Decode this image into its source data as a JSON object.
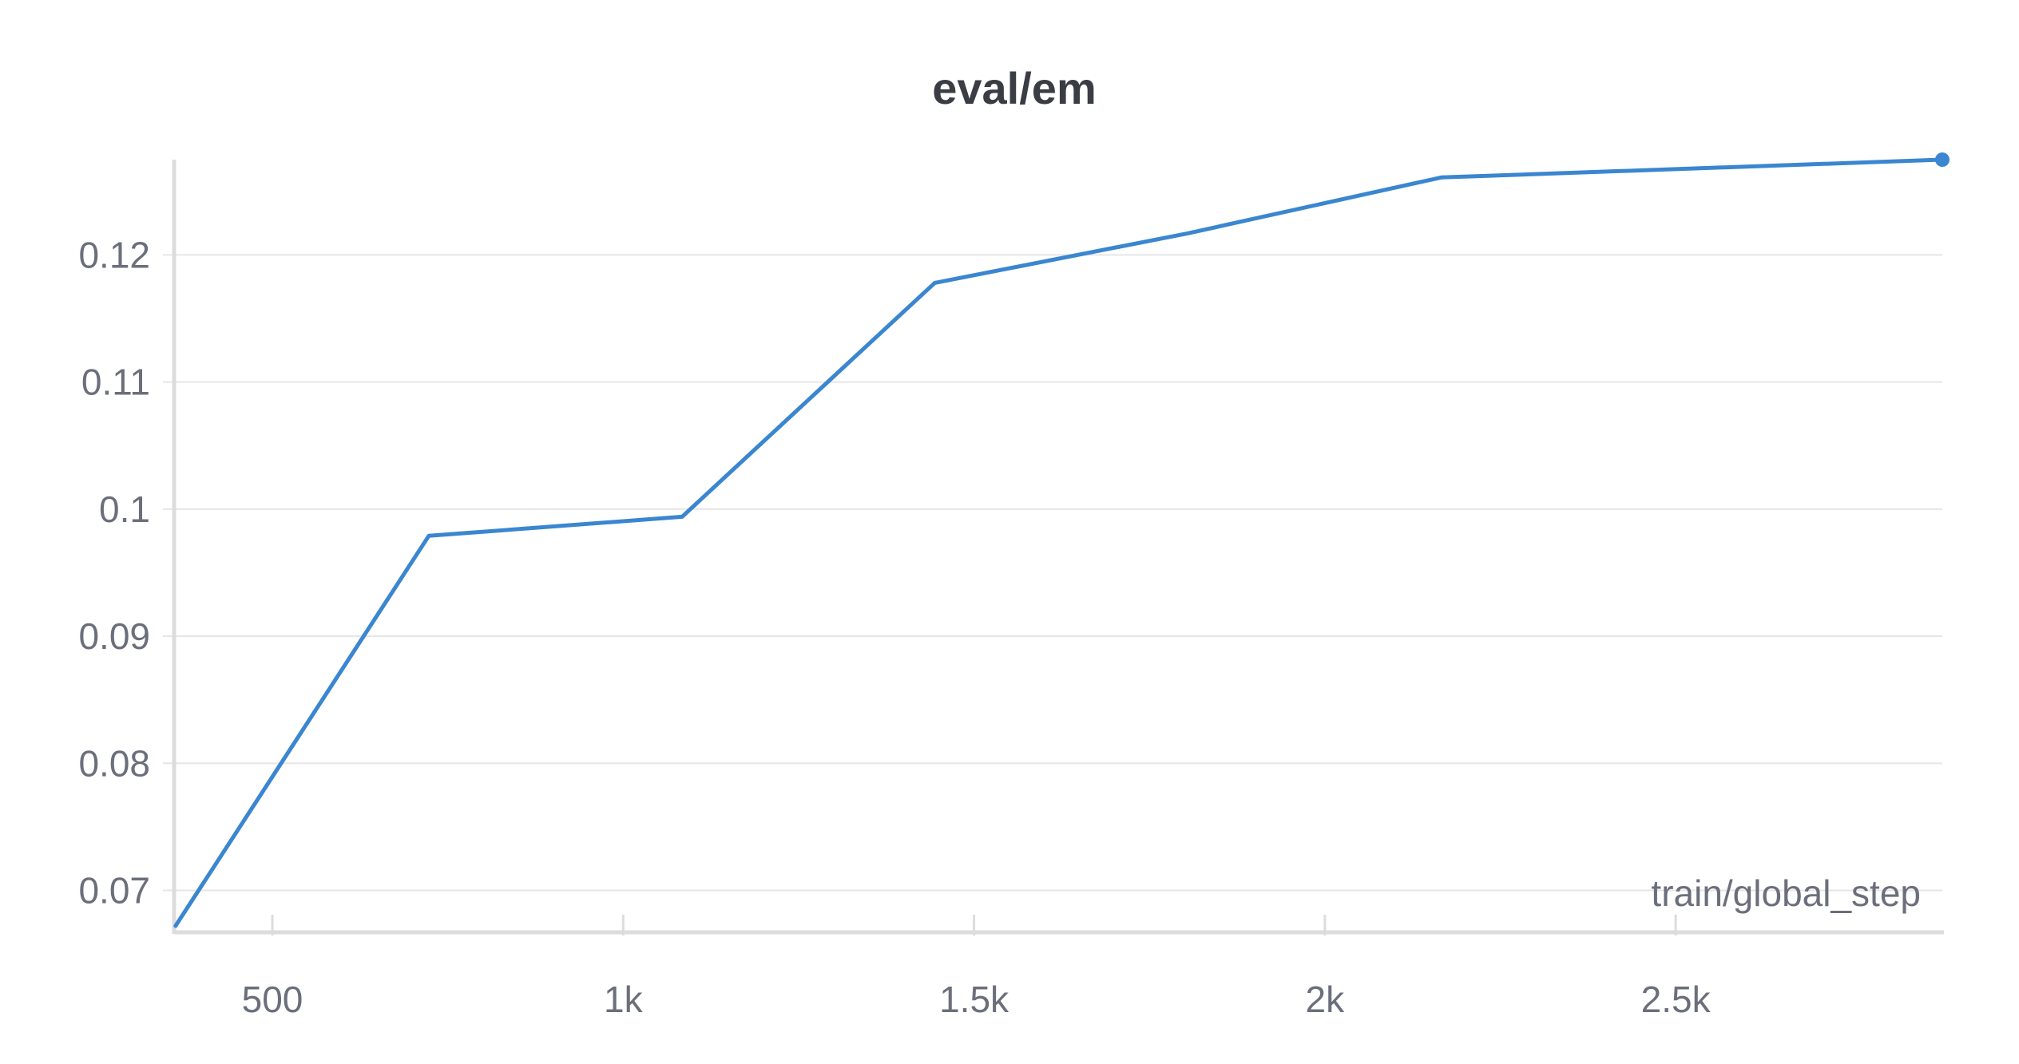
{
  "chart_data": {
    "type": "line",
    "title": "eval/em",
    "xlabel": "train/global_step",
    "ylabel": "",
    "xlim": [
      360,
      2880
    ],
    "ylim": [
      0.0667,
      0.1275
    ],
    "x_ticks": [
      500,
      1000,
      1500,
      2000,
      2500
    ],
    "x_tick_labels": [
      "500",
      "1k",
      "1.5k",
      "2k",
      "2.5k"
    ],
    "y_ticks": [
      0.07,
      0.08,
      0.09,
      0.1,
      0.11,
      0.12
    ],
    "y_tick_labels": [
      "0.07",
      "0.08",
      "0.09",
      "0.1",
      "0.11",
      "0.12"
    ],
    "grid": true,
    "series": [
      {
        "color": "#3a86d0",
        "points": [
          {
            "x": 362,
            "y": 0.0672
          },
          {
            "x": 723,
            "y": 0.0979
          },
          {
            "x": 1084,
            "y": 0.0994
          },
          {
            "x": 1444,
            "y": 0.1178
          },
          {
            "x": 1805,
            "y": 0.1217
          },
          {
            "x": 2166,
            "y": 0.1261
          },
          {
            "x": 2880,
            "y": 0.1275
          }
        ]
      }
    ]
  }
}
